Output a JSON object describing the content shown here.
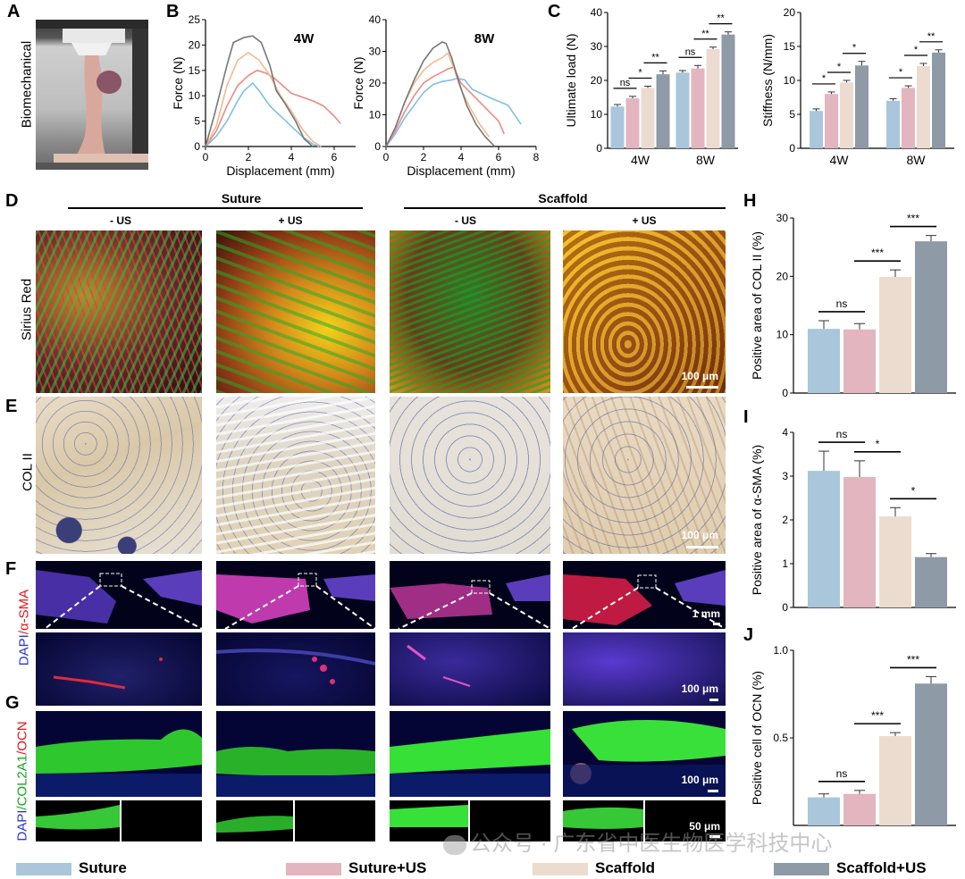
{
  "panel_letters": {
    "A": "A",
    "B": "B",
    "C": "C",
    "D": "D",
    "E": "E",
    "F": "F",
    "G": "G",
    "H": "H",
    "I": "I",
    "J": "J"
  },
  "colors": {
    "suture": "#a9c6da",
    "suture_us": "#e3b5bf",
    "scaffold": "#ecdccf",
    "scaffold_us": "#8e9aa6",
    "curve_suture": "#7fbfe6",
    "curve_suture_us": "#ee8a84",
    "curve_scaffold": "#f4b98a",
    "curve_scaffold_us": "#777777"
  },
  "icons": {
    "watermark": "wechat-icon"
  },
  "panel_a": {
    "label": "Biomechanical"
  },
  "panel_d": {
    "group1": "Suture",
    "group2": "Scaffold",
    "cols": [
      "- US",
      "+ US",
      "- US",
      "+ US"
    ],
    "row_label": "Sirius Red",
    "scale": "100 μm"
  },
  "panel_e": {
    "row_label": "COL II",
    "scale": "100 μm"
  },
  "panel_f": {
    "row_label_blue": "DAPI",
    "row_label_red": "/α-SMA",
    "scale_top": "1 mm",
    "scale_bottom": "100 μm"
  },
  "panel_g": {
    "row_label_blue": "DAPI",
    "row_label_green": "/COL2A1",
    "row_label_red": "/OCN",
    "scale_top": "100 μm",
    "scale_bottom": "50 μm"
  },
  "legend": [
    {
      "label": "Suture",
      "color": "#a9c6da"
    },
    {
      "label": "Suture+US",
      "color": "#e3b5bf"
    },
    {
      "label": "Scaffold",
      "color": "#ecdccf"
    },
    {
      "label": "Scaffold+US",
      "color": "#8e9aa6"
    }
  ],
  "watermark": "公众号 · 广东省中医生物医学科技中心",
  "chart_data": [
    {
      "id": "B1",
      "type": "line",
      "title": "4W",
      "xlabel": "Displacement (mm)",
      "ylabel": "Force (N)",
      "xlim": [
        0,
        7
      ],
      "ylim": [
        0,
        25
      ],
      "xticks": [
        0,
        2,
        4,
        6
      ],
      "yticks": [
        0,
        5,
        10,
        15,
        20,
        25
      ],
      "series": [
        {
          "key": "suture",
          "x": [
            0,
            0.5,
            1,
            1.5,
            1.8,
            2.2,
            2.5,
            3,
            3.5,
            4,
            4.5,
            5,
            5.3
          ],
          "values": [
            0,
            2,
            5,
            9,
            11,
            12.5,
            11,
            8,
            6,
            4,
            2,
            0.5,
            0
          ]
        },
        {
          "key": "suture_us",
          "x": [
            0,
            0.5,
            1,
            1.5,
            2,
            2.4,
            2.8,
            3.2,
            4,
            5,
            5.5,
            6,
            6.3
          ],
          "values": [
            0,
            3,
            8,
            12,
            14,
            15,
            14.5,
            13.5,
            10.5,
            9,
            8,
            6,
            4.5
          ]
        },
        {
          "key": "scaffold",
          "x": [
            0,
            0.5,
            1,
            1.5,
            2,
            2.5,
            3,
            3.5,
            4,
            4.5,
            5,
            5.4
          ],
          "values": [
            0,
            4,
            12,
            17,
            18.5,
            17,
            14,
            10,
            7,
            3.5,
            1,
            0
          ]
        },
        {
          "key": "scaffold_us",
          "x": [
            0,
            0.4,
            1,
            1.3,
            1.8,
            2.2,
            2.6,
            3,
            3.3,
            3.7,
            4.2,
            4.6,
            5
          ],
          "values": [
            0,
            6,
            16,
            20.5,
            21.5,
            21.8,
            20.5,
            16,
            11,
            8.5,
            5,
            1.5,
            0
          ]
        }
      ]
    },
    {
      "id": "B2",
      "type": "line",
      "title": "8W",
      "xlabel": "Displacement (mm)",
      "ylabel": "Force (N)",
      "xlim": [
        0,
        8
      ],
      "ylim": [
        0,
        40
      ],
      "xticks": [
        0,
        2,
        4,
        6,
        8
      ],
      "yticks": [
        0,
        10,
        20,
        30,
        40
      ],
      "series": [
        {
          "key": "suture",
          "x": [
            0,
            0.5,
            1,
            1.5,
            2,
            2.5,
            3,
            3.5,
            3.8,
            4.2,
            4.6,
            5.5,
            6.5,
            7.2
          ],
          "values": [
            0,
            4,
            9,
            13,
            17,
            19.5,
            20.5,
            21,
            21.5,
            21,
            18,
            15.5,
            13,
            7
          ]
        },
        {
          "key": "suture_us",
          "x": [
            0,
            0.5,
            1,
            1.5,
            2,
            2.5,
            3,
            3.3,
            3.6,
            4,
            4.5,
            5,
            5.5,
            6,
            6.3
          ],
          "values": [
            0,
            5,
            11,
            16,
            20,
            22,
            23.5,
            24.5,
            25,
            20,
            17,
            14,
            11,
            8,
            4
          ]
        },
        {
          "key": "scaffold",
          "x": [
            0,
            0.5,
            1,
            1.5,
            2,
            2.5,
            3,
            3.3,
            3.6,
            4,
            4.5,
            5,
            5.5
          ],
          "values": [
            0,
            6,
            14,
            20,
            24,
            26.5,
            28,
            29.5,
            25,
            18,
            12,
            7,
            3
          ]
        },
        {
          "key": "scaffold_us",
          "x": [
            0,
            0.5,
            1,
            1.5,
            2,
            2.5,
            3,
            3.2,
            3.5,
            3.9,
            4.3,
            4.8,
            5.3,
            5.8
          ],
          "values": [
            0,
            6,
            14,
            21,
            27,
            31,
            33,
            32.5,
            28,
            20,
            13,
            7,
            3,
            0
          ]
        }
      ]
    },
    {
      "id": "C1",
      "type": "bar",
      "ylabel": "Ultimate load (N)",
      "categories": [
        "4W",
        "8W"
      ],
      "ylim": [
        0,
        40
      ],
      "yticks": [
        0,
        10,
        20,
        30,
        40
      ],
      "series": [
        {
          "key": "suture",
          "values": [
            12.3,
            22.3
          ],
          "errors": [
            0.6,
            0.6
          ]
        },
        {
          "key": "suture_us",
          "values": [
            14.7,
            23.5
          ],
          "errors": [
            0.6,
            0.9
          ]
        },
        {
          "key": "scaffold",
          "values": [
            17.8,
            29.2
          ],
          "errors": [
            0.5,
            0.6
          ]
        },
        {
          "key": "scaffold_us",
          "values": [
            21.8,
            33.5
          ],
          "errors": [
            1.0,
            0.8
          ]
        }
      ],
      "significance": [
        {
          "group": 0,
          "from": 0,
          "to": 1,
          "label": "ns"
        },
        {
          "group": 0,
          "from": 1,
          "to": 2,
          "label": "*"
        },
        {
          "group": 0,
          "from": 2,
          "to": 3,
          "label": "**"
        },
        {
          "group": 1,
          "from": 0,
          "to": 1,
          "label": "ns"
        },
        {
          "group": 1,
          "from": 1,
          "to": 2,
          "label": "**"
        },
        {
          "group": 1,
          "from": 2,
          "to": 3,
          "label": "**"
        }
      ]
    },
    {
      "id": "C2",
      "type": "bar",
      "ylabel": "Stiffness (N/mm)",
      "categories": [
        "4W",
        "8W"
      ],
      "ylim": [
        0,
        20
      ],
      "yticks": [
        0,
        5,
        10,
        15,
        20
      ],
      "series": [
        {
          "key": "suture",
          "values": [
            5.5,
            7.0
          ],
          "errors": [
            0.3,
            0.3
          ]
        },
        {
          "key": "suture_us",
          "values": [
            8.0,
            8.9
          ],
          "errors": [
            0.3,
            0.3
          ]
        },
        {
          "key": "scaffold",
          "values": [
            9.7,
            12.1
          ],
          "errors": [
            0.3,
            0.4
          ]
        },
        {
          "key": "scaffold_us",
          "values": [
            12.2,
            14.1
          ],
          "errors": [
            0.6,
            0.4
          ]
        }
      ],
      "significance": [
        {
          "group": 0,
          "from": 0,
          "to": 1,
          "label": "*"
        },
        {
          "group": 0,
          "from": 1,
          "to": 2,
          "label": "*"
        },
        {
          "group": 0,
          "from": 2,
          "to": 3,
          "label": "*"
        },
        {
          "group": 1,
          "from": 0,
          "to": 1,
          "label": "*"
        },
        {
          "group": 1,
          "from": 1,
          "to": 2,
          "label": "*"
        },
        {
          "group": 1,
          "from": 2,
          "to": 3,
          "label": "**"
        }
      ]
    },
    {
      "id": "H",
      "type": "bar",
      "ylabel": "Positive area of COL II (%)",
      "ylim": [
        0,
        30
      ],
      "yticks": [
        0,
        10,
        20,
        30
      ],
      "series": [
        {
          "key": "suture",
          "values": [
            11.0
          ],
          "errors": [
            1.4
          ]
        },
        {
          "key": "suture_us",
          "values": [
            10.9
          ],
          "errors": [
            1.0
          ]
        },
        {
          "key": "scaffold",
          "values": [
            19.9
          ],
          "errors": [
            1.2
          ]
        },
        {
          "key": "scaffold_us",
          "values": [
            26.0
          ],
          "errors": [
            1.0
          ]
        }
      ],
      "significance": [
        {
          "from": 0,
          "to": 1,
          "label": "ns"
        },
        {
          "from": 1,
          "to": 2,
          "label": "***"
        },
        {
          "from": 2,
          "to": 3,
          "label": "***"
        }
      ]
    },
    {
      "id": "I",
      "type": "bar",
      "ylabel": "Positive area of α-SMA (%)",
      "ylim": [
        0,
        4
      ],
      "yticks": [
        0,
        1,
        2,
        3,
        4
      ],
      "series": [
        {
          "key": "suture",
          "values": [
            3.12
          ],
          "errors": [
            0.45
          ]
        },
        {
          "key": "suture_us",
          "values": [
            2.98
          ],
          "errors": [
            0.37
          ]
        },
        {
          "key": "scaffold",
          "values": [
            2.08
          ],
          "errors": [
            0.2
          ]
        },
        {
          "key": "scaffold_us",
          "values": [
            1.15
          ],
          "errors": [
            0.08
          ]
        }
      ],
      "significance": [
        {
          "from": 0,
          "to": 1,
          "label": "ns"
        },
        {
          "from": 1,
          "to": 2,
          "label": "*"
        },
        {
          "from": 2,
          "to": 3,
          "label": "*"
        }
      ]
    },
    {
      "id": "J",
      "type": "bar",
      "ylabel": "Positive cell of OCN (%)",
      "ylim": [
        0,
        1.0
      ],
      "yticks": [
        0.5,
        1.0
      ],
      "ytick_labels": [
        "0.5",
        "1.0"
      ],
      "series": [
        {
          "key": "suture",
          "values": [
            0.16
          ],
          "errors": [
            0.02
          ]
        },
        {
          "key": "suture_us",
          "values": [
            0.18
          ],
          "errors": [
            0.02
          ]
        },
        {
          "key": "scaffold",
          "values": [
            0.51
          ],
          "errors": [
            0.02
          ]
        },
        {
          "key": "scaffold_us",
          "values": [
            0.81
          ],
          "errors": [
            0.04
          ]
        }
      ],
      "significance": [
        {
          "from": 0,
          "to": 1,
          "label": "ns"
        },
        {
          "from": 1,
          "to": 2,
          "label": "***"
        },
        {
          "from": 2,
          "to": 3,
          "label": "***"
        }
      ]
    }
  ]
}
